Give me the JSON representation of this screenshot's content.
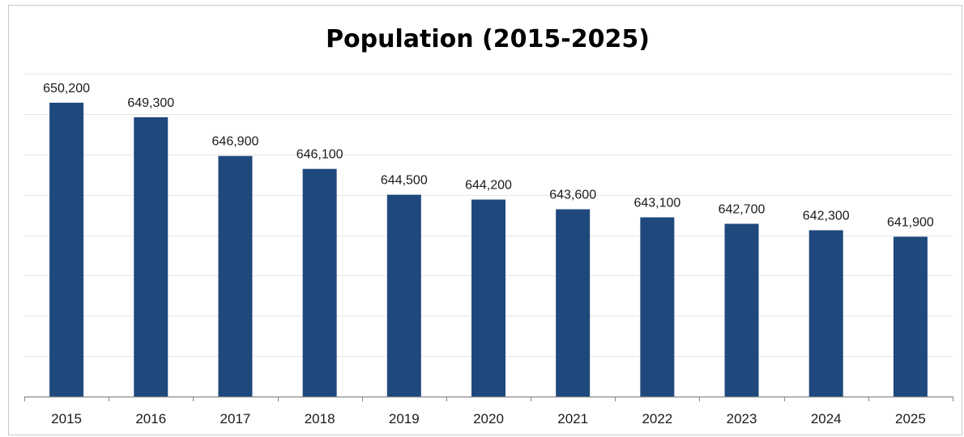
{
  "chart_data": {
    "type": "bar",
    "title": "Population (2015-2025)",
    "xlabel": "",
    "ylabel": "",
    "categories": [
      "2015",
      "2016",
      "2017",
      "2018",
      "2019",
      "2020",
      "2021",
      "2022",
      "2023",
      "2024",
      "2025"
    ],
    "values": [
      650200,
      649300,
      646900,
      646100,
      644500,
      644200,
      643600,
      643100,
      642700,
      642300,
      641900
    ],
    "data_labels": [
      "650,200",
      "649,300",
      "646,900",
      "646,100",
      "644,500",
      "644,200",
      "643,600",
      "643,100",
      "642,700",
      "642,300",
      "641,900"
    ],
    "ylim": [
      632000,
      652000
    ],
    "grid": true,
    "legend": "none",
    "bar_color": "#1f497d",
    "grid_color": "#e6e6e6",
    "axis_color": "#888888"
  }
}
